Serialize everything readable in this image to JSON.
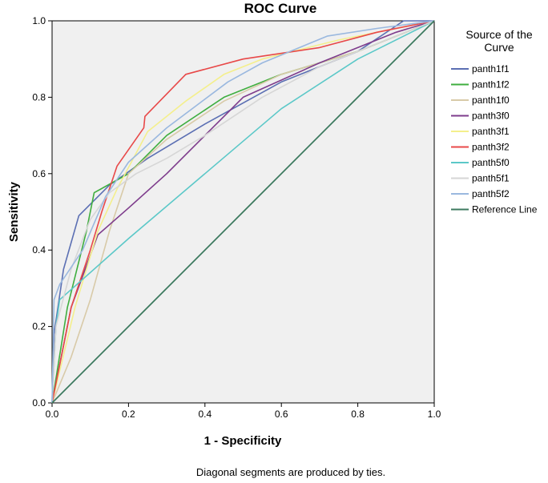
{
  "chart_data": {
    "type": "line",
    "title": "ROC Curve",
    "xlabel": "1 - Specificity",
    "ylabel": "Sensitivity",
    "xlim": [
      0,
      1
    ],
    "ylim": [
      0,
      1
    ],
    "xticks": [
      "0.0",
      "0.2",
      "0.4",
      "0.6",
      "0.8",
      "1.0"
    ],
    "yticks": [
      "0.0",
      "0.2",
      "0.4",
      "0.6",
      "0.8",
      "1.0"
    ],
    "grid": false,
    "plot_background": "#f0f0f0",
    "legend": {
      "title_line1": "Source of the",
      "title_line2": "Curve",
      "placement": "right"
    },
    "footnote": "Diagonal segments are produced by ties.",
    "series": [
      {
        "name": "panth1f1",
        "color": "#5b6fb3",
        "x": [
          0,
          0.005,
          0.03,
          0.07,
          0.15,
          0.25,
          0.4,
          0.6,
          0.8,
          0.92,
          1
        ],
        "y": [
          0,
          0.18,
          0.35,
          0.49,
          0.57,
          0.64,
          0.73,
          0.84,
          0.92,
          1,
          1
        ]
      },
      {
        "name": "panth1f2",
        "color": "#3fae3f",
        "x": [
          0,
          0.04,
          0.09,
          0.11,
          0.2,
          0.3,
          0.45,
          0.6,
          0.8,
          1
        ],
        "y": [
          0,
          0.25,
          0.45,
          0.55,
          0.6,
          0.7,
          0.8,
          0.86,
          0.92,
          1
        ]
      },
      {
        "name": "panth1f0",
        "color": "#d8caa8",
        "x": [
          0,
          0.05,
          0.1,
          0.15,
          0.2,
          0.3,
          0.45,
          0.6,
          0.8,
          1
        ],
        "y": [
          0,
          0.12,
          0.27,
          0.45,
          0.6,
          0.69,
          0.79,
          0.86,
          0.92,
          1
        ]
      },
      {
        "name": "panth3f0",
        "color": "#7e3c8c",
        "x": [
          0,
          0.05,
          0.12,
          0.2,
          0.3,
          0.4,
          0.5,
          0.7,
          0.9,
          1
        ],
        "y": [
          0,
          0.25,
          0.44,
          0.51,
          0.6,
          0.7,
          0.8,
          0.89,
          0.97,
          1
        ]
      },
      {
        "name": "panth3f1",
        "color": "#f4ef8c",
        "x": [
          0,
          0.06,
          0.12,
          0.17,
          0.25,
          0.35,
          0.45,
          0.55,
          0.75,
          1
        ],
        "y": [
          0,
          0.25,
          0.45,
          0.56,
          0.71,
          0.79,
          0.86,
          0.9,
          0.95,
          1
        ]
      },
      {
        "name": "panth3f2",
        "color": "#e84848",
        "x": [
          0,
          0.05,
          0.1,
          0.13,
          0.17,
          0.24,
          0.243,
          0.35,
          0.5,
          0.7,
          0.85,
          1
        ],
        "y": [
          0,
          0.25,
          0.4,
          0.5,
          0.62,
          0.72,
          0.75,
          0.86,
          0.9,
          0.93,
          0.97,
          1
        ]
      },
      {
        "name": "panth5f0",
        "color": "#5bc8c8",
        "x": [
          0,
          0.01,
          0.02,
          0.2,
          0.4,
          0.6,
          0.8,
          1
        ],
        "y": [
          0,
          0.2,
          0.27,
          0.43,
          0.6,
          0.77,
          0.9,
          1
        ]
      },
      {
        "name": "panth5f1",
        "color": "#d6d6d6",
        "x": [
          0,
          0.01,
          0.05,
          0.1,
          0.15,
          0.22,
          0.3,
          0.4,
          0.55,
          0.7,
          0.85,
          1
        ],
        "y": [
          0,
          0.2,
          0.35,
          0.48,
          0.55,
          0.6,
          0.64,
          0.7,
          0.8,
          0.88,
          0.94,
          1
        ]
      },
      {
        "name": "panth5f2",
        "color": "#9ab8df",
        "x": [
          0,
          0.005,
          0.02,
          0.08,
          0.14,
          0.2,
          0.3,
          0.46,
          0.55,
          0.72,
          0.85,
          1
        ],
        "y": [
          0,
          0.27,
          0.31,
          0.4,
          0.54,
          0.63,
          0.72,
          0.84,
          0.89,
          0.96,
          0.98,
          1
        ]
      },
      {
        "name": "Reference Line",
        "color": "#3d7a5f",
        "x": [
          0,
          1
        ],
        "y": [
          0,
          1
        ]
      }
    ]
  }
}
